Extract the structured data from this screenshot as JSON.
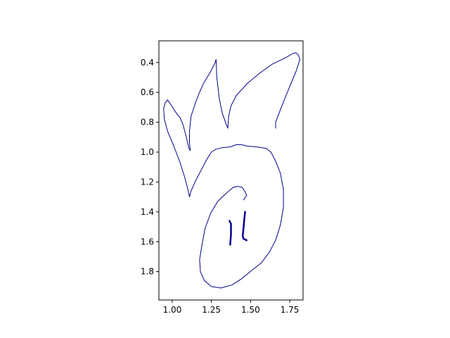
{
  "chart_data": {
    "type": "line",
    "title": "",
    "xlabel": "",
    "ylabel": "",
    "xlim": [
      0.915,
      1.835
    ],
    "ylim": [
      1.99,
      0.255
    ],
    "y_inverted": true,
    "grid": false,
    "legend": "none",
    "x_ticks": [
      1.0,
      1.25,
      1.5,
      1.75
    ],
    "x_tick_labels": [
      "1.00",
      "1.25",
      "1.50",
      "1.75"
    ],
    "y_ticks": [
      0.4,
      0.6,
      0.8,
      1.0,
      1.2,
      1.4,
      1.6,
      1.8
    ],
    "y_tick_labels": [
      "0.4",
      "0.6",
      "0.8",
      "1.0",
      "1.2",
      "1.4",
      "1.6",
      "1.8"
    ],
    "series": [
      {
        "color": "#00008b",
        "linewidth": 1,
        "points": [
          [
            1.66,
            0.84
          ],
          [
            1.66,
            0.8
          ],
          [
            1.7,
            0.69
          ],
          [
            1.75,
            0.56
          ],
          [
            1.79,
            0.46
          ],
          [
            1.815,
            0.38
          ],
          [
            1.805,
            0.35
          ],
          [
            1.79,
            0.335
          ],
          [
            1.77,
            0.34
          ],
          [
            1.72,
            0.37
          ],
          [
            1.64,
            0.41
          ],
          [
            1.56,
            0.47
          ],
          [
            1.48,
            0.54
          ],
          [
            1.41,
            0.62
          ],
          [
            1.375,
            0.69
          ],
          [
            1.36,
            0.76
          ],
          [
            1.355,
            0.84
          ],
          [
            1.34,
            0.8
          ],
          [
            1.32,
            0.74
          ],
          [
            1.3,
            0.64
          ],
          [
            1.285,
            0.5
          ],
          [
            1.28,
            0.38
          ],
          [
            1.27,
            0.41
          ],
          [
            1.24,
            0.47
          ],
          [
            1.2,
            0.54
          ],
          [
            1.17,
            0.61
          ],
          [
            1.145,
            0.68
          ],
          [
            1.12,
            0.76
          ],
          [
            1.11,
            0.86
          ],
          [
            1.11,
            0.94
          ],
          [
            1.115,
            0.99
          ],
          [
            1.105,
            0.97
          ],
          [
            1.09,
            0.9
          ],
          [
            1.07,
            0.82
          ],
          [
            1.05,
            0.77
          ],
          [
            1.02,
            0.73
          ],
          [
            0.99,
            0.68
          ],
          [
            0.97,
            0.65
          ],
          [
            0.955,
            0.67
          ],
          [
            0.945,
            0.71
          ],
          [
            0.95,
            0.78
          ],
          [
            0.97,
            0.86
          ],
          [
            1.01,
            0.96
          ],
          [
            1.05,
            1.07
          ],
          [
            1.08,
            1.17
          ],
          [
            1.1,
            1.25
          ],
          [
            1.11,
            1.3
          ],
          [
            1.12,
            1.26
          ],
          [
            1.15,
            1.19
          ],
          [
            1.19,
            1.11
          ],
          [
            1.22,
            1.05
          ],
          [
            1.25,
            1.0
          ],
          [
            1.28,
            0.98
          ],
          [
            1.32,
            0.97
          ],
          [
            1.37,
            0.965
          ],
          [
            1.41,
            0.95
          ],
          [
            1.44,
            0.95
          ],
          [
            1.48,
            0.96
          ],
          [
            1.54,
            0.965
          ],
          [
            1.6,
            0.975
          ],
          [
            1.63,
            1.0
          ],
          [
            1.66,
            1.06
          ],
          [
            1.69,
            1.14
          ],
          [
            1.71,
            1.25
          ],
          [
            1.71,
            1.37
          ],
          [
            1.69,
            1.49
          ],
          [
            1.66,
            1.59
          ],
          [
            1.62,
            1.67
          ],
          [
            1.57,
            1.74
          ],
          [
            1.51,
            1.79
          ],
          [
            1.44,
            1.85
          ],
          [
            1.38,
            1.89
          ],
          [
            1.31,
            1.91
          ],
          [
            1.25,
            1.9
          ],
          [
            1.205,
            1.86
          ],
          [
            1.18,
            1.8
          ],
          [
            1.175,
            1.72
          ],
          [
            1.19,
            1.62
          ],
          [
            1.21,
            1.51
          ],
          [
            1.245,
            1.41
          ],
          [
            1.29,
            1.33
          ],
          [
            1.34,
            1.28
          ],
          [
            1.39,
            1.235
          ],
          [
            1.42,
            1.23
          ],
          [
            1.445,
            1.235
          ],
          [
            1.465,
            1.265
          ],
          [
            1.475,
            1.29
          ],
          [
            1.455,
            1.32
          ]
        ]
      },
      {
        "color": "#00008b",
        "linewidth": 2.5,
        "points": [
          [
            1.365,
            1.46
          ],
          [
            1.375,
            1.48
          ],
          [
            1.375,
            1.55
          ],
          [
            1.37,
            1.62
          ]
        ]
      },
      {
        "color": "#00008b",
        "linewidth": 2.5,
        "points": [
          [
            1.465,
            1.4
          ],
          [
            1.46,
            1.45
          ],
          [
            1.455,
            1.51
          ],
          [
            1.45,
            1.56
          ],
          [
            1.455,
            1.58
          ],
          [
            1.475,
            1.59
          ]
        ]
      }
    ]
  }
}
